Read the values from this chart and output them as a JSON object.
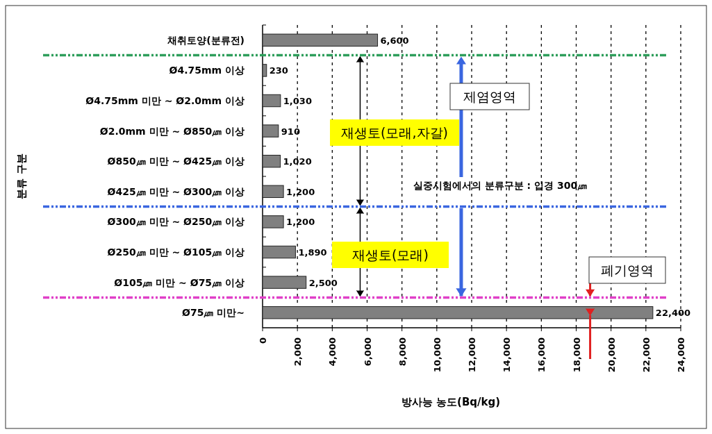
{
  "chart_data": {
    "type": "bar",
    "orientation": "horizontal",
    "xlabel": "방사능 농도(Bq/kg)",
    "categories": [
      "채취토양(분류전)",
      "Ø4.75mm 이상",
      "Ø4.75mm 미만 ~ Ø2.0mm 이상",
      "Ø2.0mm 미만 ~ Ø850㎛ 이상",
      "Ø850㎛ 미만 ~ Ø425㎛ 이상",
      "Ø425㎛ 미만 ~ Ø300㎛ 이상",
      "Ø300㎛ 미만 ~ Ø250㎛ 이상",
      "Ø250㎛ 미만 ~ Ø105㎛ 이상",
      "Ø105㎛ 미만 ~ Ø75㎛ 이상",
      "Ø75㎛ 미만~"
    ],
    "values": [
      6600,
      230,
      1030,
      910,
      1020,
      1200,
      1200,
      1890,
      2500,
      22400
    ],
    "color": "#808080",
    "grid": "x",
    "value_labels": [
      "6,600",
      "230",
      "1,030",
      "910",
      "1,020",
      "1,200",
      "1,200",
      "1,890",
      "2,500",
      "22,400"
    ],
    "xlim": [
      0,
      24000
    ],
    "xticks": [
      0,
      {
        "value": 2000,
        "label": "2,000"
      },
      {
        "value": 4000,
        "label": "4,000"
      },
      {
        "value": 6000,
        "label": "6,000"
      },
      {
        "value": 8000,
        "label": "8,000"
      },
      {
        "value": 10000,
        "label": "10,000"
      },
      {
        "value": 12000,
        "label": "12,000"
      },
      {
        "value": 14000,
        "label": "14,000"
      },
      {
        "value": 16000,
        "label": "16,000"
      },
      {
        "value": 18000,
        "label": "18,000"
      },
      {
        "value": 20000,
        "label": "20,000"
      },
      {
        "value": 22000,
        "label": "22,000"
      },
      {
        "value": 24000,
        "label": "24,000"
      }
    ],
    "ref_lines": [
      {
        "axis": "y",
        "value": "채취토양(분류전)",
        "color": "#2e9e5b",
        "line_style": "dashed"
      },
      {
        "axis": "y",
        "value": "Ø425㎛ 미만 ~ Ø300㎛ 이상",
        "color": "#3a66e0",
        "line_style": "dashed"
      },
      {
        "axis": "y",
        "value": "Ø105㎛ 미만 ~ Ø75㎛ 이상",
        "color": "#e040c8",
        "line_style": "dashed"
      }
    ],
    "annotations": [
      "제염영역",
      "재생토(모래,자갈)",
      "실중시험에서의 분류구분 : 입경 300㎛",
      "재생토(모래)",
      "폐기영역",
      "분류 구분"
    ]
  }
}
